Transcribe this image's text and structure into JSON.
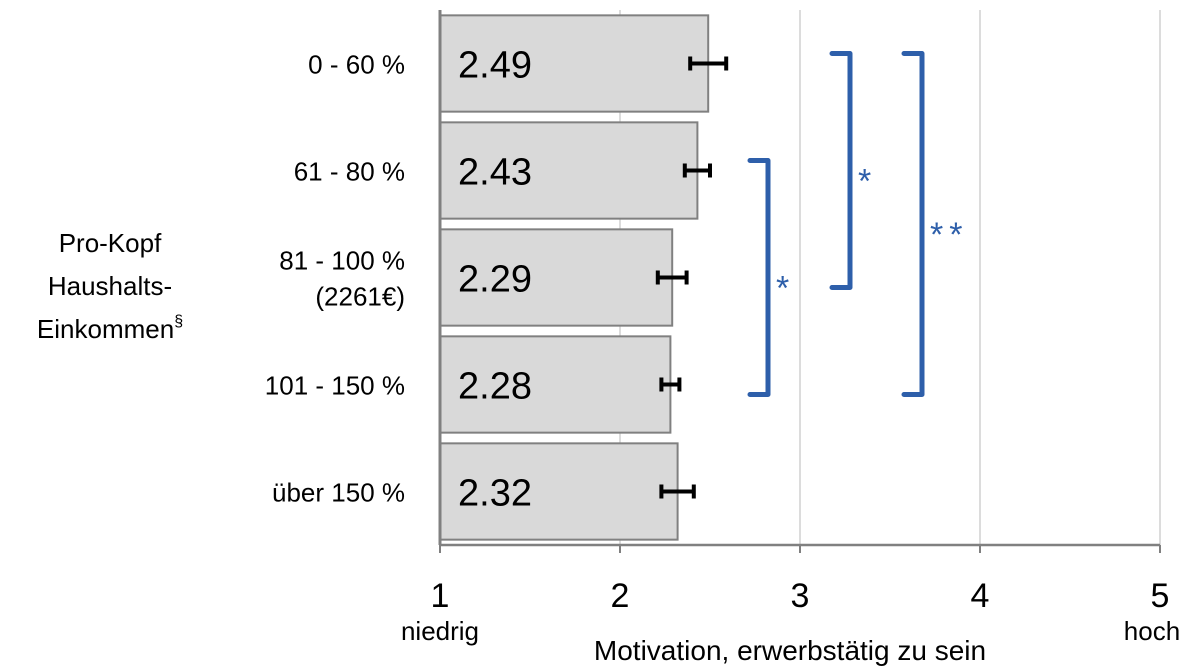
{
  "chart_data": {
    "type": "bar",
    "orientation": "horizontal",
    "ylabel_lines": [
      "Pro-Kopf",
      "Haushalts-",
      "Einkommen"
    ],
    "ylabel_superscript": "§",
    "categories": [
      [
        "0 - 60 %"
      ],
      [
        "61 - 80 %"
      ],
      [
        "81 - 100 %",
        "(2261€)"
      ],
      [
        "101 - 150 %"
      ],
      [
        "über 150 %"
      ]
    ],
    "values": [
      2.49,
      2.43,
      2.29,
      2.28,
      2.32
    ],
    "value_labels": [
      "2.49",
      "2.43",
      "2.29",
      "2.28",
      "2.32"
    ],
    "errors": [
      0.1,
      0.07,
      0.08,
      0.05,
      0.09
    ],
    "xlabel": "Motivation, erwerbstätig zu sein",
    "xlim": [
      1,
      5
    ],
    "xticks": [
      "1",
      "2",
      "3",
      "4",
      "5"
    ],
    "xtick_sublabels": {
      "low": "niedrig",
      "high": "hoch"
    },
    "grid": "vertical",
    "colors": {
      "bar_fill": "#d9d9d9",
      "bar_stroke": "#808080",
      "bracket": "#2e5faa",
      "grid": "#d0d0d0"
    },
    "significance": [
      {
        "from": 1,
        "to": 3,
        "label": "*"
      },
      {
        "from": 0,
        "to": 2,
        "label": "*"
      },
      {
        "from": 0,
        "to": 3,
        "label": "**"
      }
    ]
  }
}
